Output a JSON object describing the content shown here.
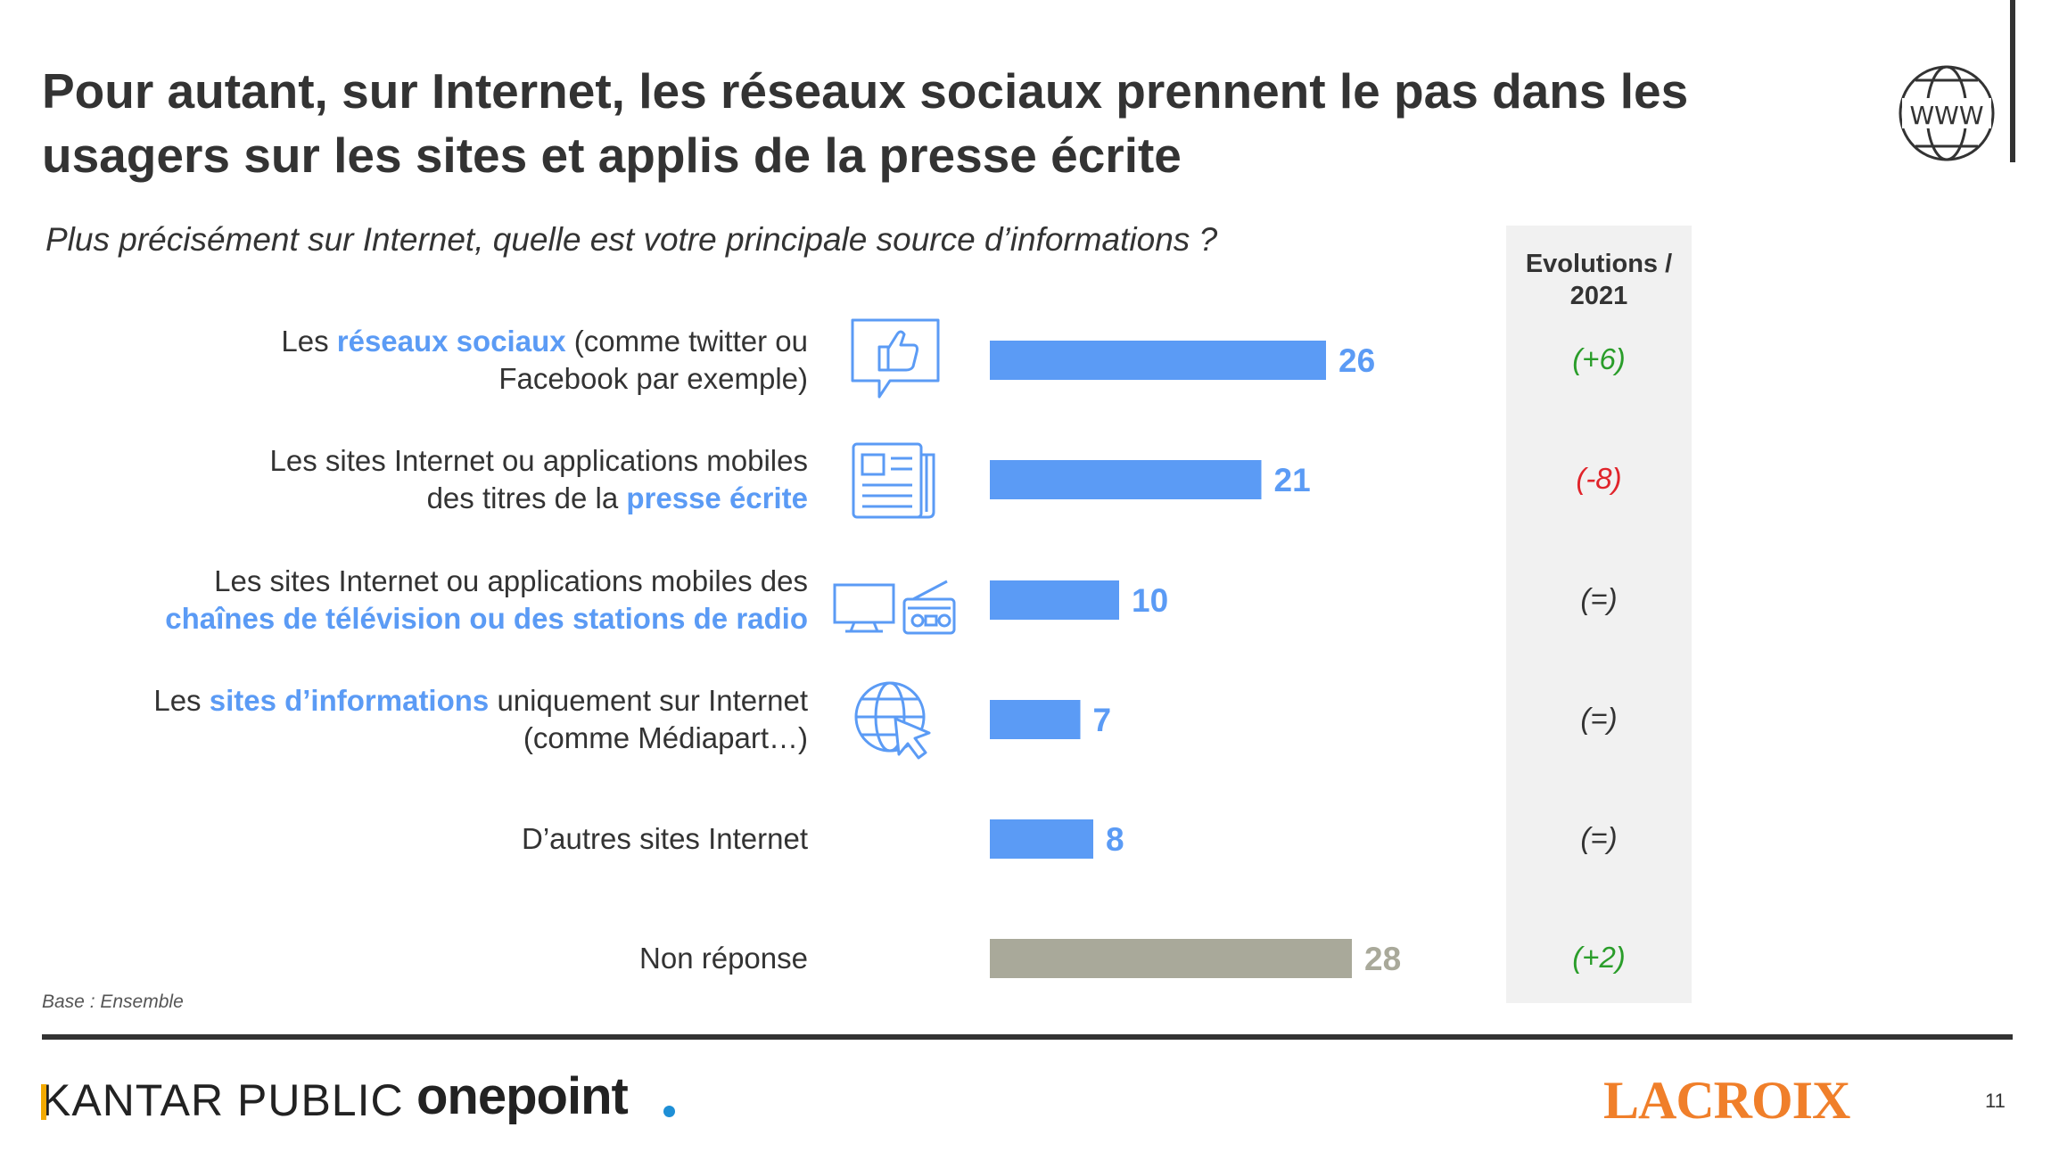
{
  "header": {
    "title": "Pour autant, sur Internet, les réseaux sociaux prennent le pas dans les usagers sur les sites et applis de la presse écrite",
    "subtitle": "Plus précisément sur Internet, quelle est votre principale source d’informations ?",
    "www_icon_text": "WWW"
  },
  "evolutions": {
    "header": "Evolutions / 2021",
    "values": [
      "(+6)",
      "(-8)",
      "(=)",
      "(=)",
      "(=)",
      "(+2)"
    ],
    "colors": [
      "#2a9d2a",
      "#e0242b",
      "#333333",
      "#333333",
      "#333333",
      "#2a9d2a"
    ]
  },
  "categories": [
    {
      "line1_pre": "Les ",
      "line1_hl": "réseaux sociaux",
      "line1_post": " (comme twitter ou",
      "line2_pre": "Facebook par exemple)",
      "line2_hl": "",
      "icon": "thumbs-up-icon"
    },
    {
      "line1_pre": "Les sites Internet ou applications mobiles",
      "line1_hl": "",
      "line1_post": "",
      "line2_pre": "des titres de la ",
      "line2_hl": "presse écrite",
      "icon": "newspaper-icon"
    },
    {
      "line1_pre": "Les sites Internet ou applications mobiles des",
      "line1_hl": "",
      "line1_post": "",
      "line2_pre": "",
      "line2_hl": "chaînes de télévision ou des stations de radio",
      "icon": "tv-radio-icon"
    },
    {
      "line1_pre": "Les ",
      "line1_hl": "sites d’informations",
      "line1_post": " uniquement sur Internet",
      "line2_pre": "(comme Médiapart…)",
      "line2_hl": "",
      "icon": "globe-cursor-icon"
    },
    {
      "line1_pre": "D’autres sites Internet",
      "line1_hl": "",
      "line1_post": "",
      "line2_pre": "",
      "line2_hl": "",
      "icon": ""
    },
    {
      "line1_pre": "Non réponse",
      "line1_hl": "",
      "line1_post": "",
      "line2_pre": "",
      "line2_hl": "",
      "icon": ""
    }
  ],
  "chart_data": {
    "type": "bar",
    "orientation": "horizontal",
    "categories": [
      "Les réseaux sociaux (comme twitter ou Facebook par exemple)",
      "Les sites Internet ou applications mobiles des titres de la presse écrite",
      "Les sites Internet ou applications mobiles des chaînes de télévision ou des stations de radio",
      "Les sites d’informations uniquement sur Internet (comme Médiapart…)",
      "D’autres sites Internet",
      "Non réponse"
    ],
    "values": [
      26,
      21,
      10,
      7,
      8,
      28
    ],
    "colors": [
      "#5b9bf5",
      "#5b9bf5",
      "#5b9bf5",
      "#5b9bf5",
      "#5b9bf5",
      "#a9a99a"
    ],
    "label_colors": [
      "#5b9bf5",
      "#5b9bf5",
      "#5b9bf5",
      "#5b9bf5",
      "#5b9bf5",
      "#a9a99a"
    ],
    "xlim": [
      0,
      30
    ],
    "grid": false,
    "legend": "none"
  },
  "footer": {
    "base_note": "Base : Ensemble",
    "logo_kantar": "KANTAR PUBLIC",
    "logo_onepoint": "onepoint",
    "logo_lacroix": "LACROIX",
    "page_number": "11"
  }
}
